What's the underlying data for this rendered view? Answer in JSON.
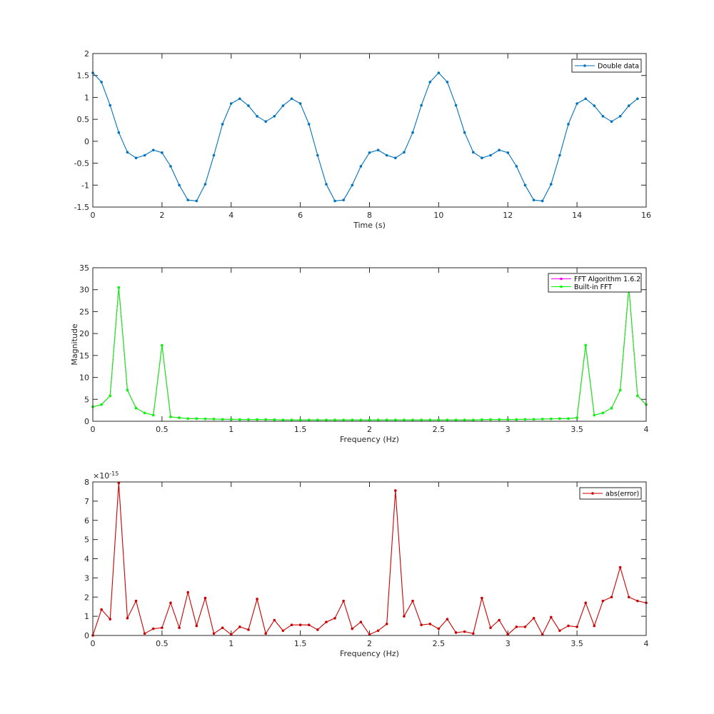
{
  "chart_data": [
    {
      "type": "line",
      "xlabel": "Time (s)",
      "ylabel": "",
      "xlim": [
        0,
        16
      ],
      "ylim": [
        -1.5,
        2
      ],
      "xticks": [
        "0",
        "2",
        "4",
        "6",
        "8",
        "10",
        "12",
        "14",
        "16"
      ],
      "yticks": [
        "-1.5",
        "-1",
        "-0.5",
        "0",
        "0.5",
        "1",
        "1.5",
        "2"
      ],
      "legend_position": "top-right",
      "marker": "dot",
      "series": [
        {
          "name": "Double data",
          "color": "#0072BD",
          "x": [
            0,
            0.25,
            0.5,
            0.75,
            1,
            1.25,
            1.5,
            1.75,
            2,
            2.25,
            2.5,
            2.75,
            3,
            3.25,
            3.5,
            3.75,
            4,
            4.25,
            4.5,
            4.75,
            5,
            5.25,
            5.5,
            5.75,
            6,
            6.25,
            6.5,
            6.75,
            7,
            7.25,
            7.5,
            7.75,
            8,
            8.25,
            8.5,
            8.75,
            9,
            9.25,
            9.5,
            9.75,
            10,
            10.25,
            10.5,
            10.75,
            11,
            11.25,
            11.5,
            11.75,
            12,
            12.25,
            12.5,
            12.75,
            13,
            13.25,
            13.5,
            13.75,
            14,
            14.25,
            14.5,
            14.75,
            15,
            15.25,
            15.5,
            15.75
          ],
          "y": [
            1.56,
            1.35,
            0.82,
            0.2,
            -0.25,
            -0.38,
            -0.32,
            -0.2,
            -0.26,
            -0.57,
            -1.0,
            -1.34,
            -1.36,
            -0.98,
            -0.32,
            0.39,
            0.86,
            0.97,
            0.81,
            0.57,
            0.45,
            0.57,
            0.81,
            0.97,
            0.86,
            0.39,
            -0.32,
            -0.98,
            -1.36,
            -1.34,
            -1.0,
            -0.57,
            -0.26,
            -0.2,
            -0.32,
            -0.38,
            -0.25,
            0.2,
            0.82,
            1.35,
            1.56,
            1.35,
            0.82,
            0.2,
            -0.25,
            -0.38,
            -0.32,
            -0.2,
            -0.26,
            -0.57,
            -1.0,
            -1.34,
            -1.36,
            -0.98,
            -0.32,
            0.39,
            0.86,
            0.97,
            0.81,
            0.57,
            0.45,
            0.57,
            0.81,
            0.97
          ]
        }
      ]
    },
    {
      "type": "line",
      "xlabel": "Frequency (Hz)",
      "ylabel": "Magnitude",
      "xlim": [
        0,
        4
      ],
      "ylim": [
        0,
        35
      ],
      "xticks": [
        "0",
        "0.5",
        "1",
        "1.5",
        "2",
        "2.5",
        "3",
        "3.5",
        "4"
      ],
      "yticks": [
        "0",
        "5",
        "10",
        "15",
        "20",
        "25",
        "30",
        "35"
      ],
      "legend_position": "top-right",
      "marker": "dot",
      "series": [
        {
          "name": "FFT Algorithm 1.6.2",
          "color": "#FF00FF",
          "x": [
            0,
            0.0625,
            0.125,
            0.1875,
            0.25,
            0.3125,
            0.375,
            0.4375,
            0.5,
            0.5625,
            0.625,
            0.6875,
            0.75,
            0.8125,
            0.875,
            0.9375,
            1,
            1.0625,
            1.125,
            1.1875,
            1.25,
            1.3125,
            1.375,
            1.4375,
            1.5,
            1.5625,
            1.625,
            1.6875,
            1.75,
            1.8125,
            1.875,
            1.9375,
            2,
            2.0625,
            2.125,
            2.1875,
            2.25,
            2.3125,
            2.375,
            2.4375,
            2.5,
            2.5625,
            2.625,
            2.6875,
            2.75,
            2.8125,
            2.875,
            2.9375,
            3,
            3.0625,
            3.125,
            3.1875,
            3.25,
            3.3125,
            3.375,
            3.4375,
            3.5,
            3.5625,
            3.625,
            3.6875,
            3.75,
            3.8125,
            3.875,
            3.9375,
            4
          ],
          "y": [
            3.3,
            3.8,
            5.8,
            30.5,
            7.1,
            3.0,
            1.9,
            1.4,
            17.3,
            1.0,
            0.8,
            0.6,
            0.6,
            0.55,
            0.5,
            0.45,
            0.45,
            0.4,
            0.4,
            0.4,
            0.4,
            0.35,
            0.3,
            0.3,
            0.3,
            0.3,
            0.3,
            0.3,
            0.3,
            0.3,
            0.3,
            0.3,
            0.3,
            0.3,
            0.3,
            0.3,
            0.3,
            0.3,
            0.3,
            0.3,
            0.3,
            0.3,
            0.3,
            0.3,
            0.3,
            0.35,
            0.4,
            0.4,
            0.4,
            0.4,
            0.45,
            0.45,
            0.5,
            0.55,
            0.6,
            0.6,
            0.8,
            17.3,
            1.4,
            1.9,
            3.0,
            7.1,
            30.5,
            5.8,
            3.8
          ]
        },
        {
          "name": "Built-in FFT",
          "color": "#00FF00",
          "x": [
            0,
            0.0625,
            0.125,
            0.1875,
            0.25,
            0.3125,
            0.375,
            0.4375,
            0.5,
            0.5625,
            0.625,
            0.6875,
            0.75,
            0.8125,
            0.875,
            0.9375,
            1,
            1.0625,
            1.125,
            1.1875,
            1.25,
            1.3125,
            1.375,
            1.4375,
            1.5,
            1.5625,
            1.625,
            1.6875,
            1.75,
            1.8125,
            1.875,
            1.9375,
            2,
            2.0625,
            2.125,
            2.1875,
            2.25,
            2.3125,
            2.375,
            2.4375,
            2.5,
            2.5625,
            2.625,
            2.6875,
            2.75,
            2.8125,
            2.875,
            2.9375,
            3,
            3.0625,
            3.125,
            3.1875,
            3.25,
            3.3125,
            3.375,
            3.4375,
            3.5,
            3.5625,
            3.625,
            3.6875,
            3.75,
            3.8125,
            3.875,
            3.9375,
            4
          ],
          "y": [
            3.3,
            3.8,
            5.8,
            30.5,
            7.1,
            3.0,
            1.9,
            1.4,
            17.3,
            1.0,
            0.8,
            0.6,
            0.6,
            0.55,
            0.5,
            0.45,
            0.45,
            0.4,
            0.4,
            0.4,
            0.4,
            0.35,
            0.3,
            0.3,
            0.3,
            0.3,
            0.3,
            0.3,
            0.3,
            0.3,
            0.3,
            0.3,
            0.3,
            0.3,
            0.3,
            0.3,
            0.3,
            0.3,
            0.3,
            0.3,
            0.3,
            0.3,
            0.3,
            0.3,
            0.3,
            0.35,
            0.4,
            0.4,
            0.4,
            0.4,
            0.45,
            0.45,
            0.5,
            0.55,
            0.6,
            0.6,
            0.8,
            17.3,
            1.4,
            1.9,
            3.0,
            7.1,
            30.5,
            5.8,
            3.8
          ]
        }
      ]
    },
    {
      "type": "line",
      "xlabel": "Frequency (Hz)",
      "ylabel": "",
      "exponent_label": "×10",
      "exponent_power": "-15",
      "xlim": [
        0,
        4
      ],
      "ylim": [
        0,
        8
      ],
      "xticks": [
        "0",
        "0.5",
        "1",
        "1.5",
        "2",
        "2.5",
        "3",
        "3.5",
        "4"
      ],
      "yticks": [
        "0",
        "1",
        "2",
        "3",
        "4",
        "5",
        "6",
        "7",
        "8"
      ],
      "legend_position": "top-right",
      "marker": "dot",
      "series": [
        {
          "name": "abs(error)",
          "color": "#CC0000",
          "x": [
            0,
            0.0625,
            0.125,
            0.1875,
            0.25,
            0.3125,
            0.375,
            0.4375,
            0.5,
            0.5625,
            0.625,
            0.6875,
            0.75,
            0.8125,
            0.875,
            0.9375,
            1,
            1.0625,
            1.125,
            1.1875,
            1.25,
            1.3125,
            1.375,
            1.4375,
            1.5,
            1.5625,
            1.625,
            1.6875,
            1.75,
            1.8125,
            1.875,
            1.9375,
            2,
            2.0625,
            2.125,
            2.1875,
            2.25,
            2.3125,
            2.375,
            2.4375,
            2.5,
            2.5625,
            2.625,
            2.6875,
            2.75,
            2.8125,
            2.875,
            2.9375,
            3,
            3.0625,
            3.125,
            3.1875,
            3.25,
            3.3125,
            3.375,
            3.4375,
            3.5,
            3.5625,
            3.625,
            3.6875,
            3.75,
            3.8125,
            3.875,
            3.9375,
            4
          ],
          "y": [
            0,
            1.35,
            0.85,
            7.95,
            0.9,
            1.8,
            0.1,
            0.35,
            0.4,
            1.7,
            0.4,
            2.25,
            0.5,
            1.95,
            0.1,
            0.4,
            0.05,
            0.45,
            0.3,
            1.9,
            0.1,
            0.8,
            0.25,
            0.55,
            0.55,
            0.55,
            0.3,
            0.7,
            0.9,
            1.8,
            0.35,
            0.7,
            0.05,
            0.25,
            0.6,
            7.55,
            1.0,
            1.8,
            0.55,
            0.6,
            0.35,
            0.85,
            0.15,
            0.2,
            0.1,
            1.95,
            0.4,
            0.8,
            0.05,
            0.45,
            0.45,
            0.9,
            0.05,
            0.95,
            0.25,
            0.5,
            0.45,
            1.7,
            0.5,
            1.8,
            2.0,
            3.55,
            2.0,
            1.8,
            1.7
          ]
        }
      ]
    }
  ]
}
